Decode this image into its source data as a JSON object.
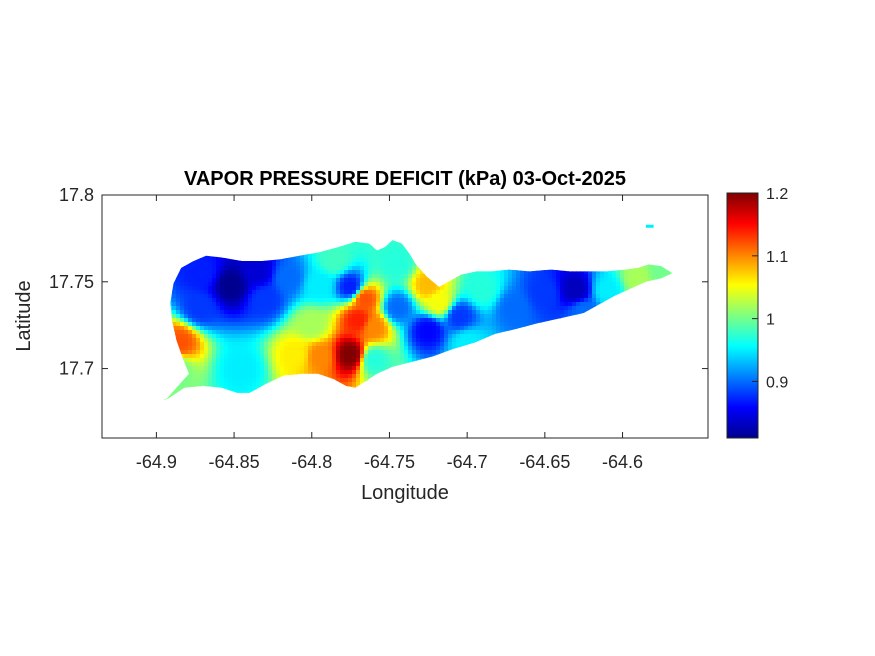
{
  "chart_data": {
    "type": "heatmap",
    "title": "VAPOR PRESSURE DEFICIT (kPa) 03-Oct-2025",
    "xlabel": "Longitude",
    "ylabel": "Latitude",
    "xlim": [
      -64.935,
      -64.545
    ],
    "ylim": [
      17.66,
      17.8
    ],
    "xticks": [
      -64.9,
      -64.85,
      -64.8,
      -64.75,
      -64.7,
      -64.65,
      -64.6
    ],
    "xtick_labels": [
      "-64.9",
      "-64.85",
      "-64.8",
      "-64.75",
      "-64.7",
      "-64.65",
      "-64.6"
    ],
    "yticks": [
      17.7,
      17.75,
      17.8
    ],
    "ytick_labels": [
      "17.7",
      "17.75",
      "17.8"
    ],
    "colorbar": {
      "min": 0.81,
      "max": 1.2,
      "colormap": "jet",
      "ticks": [
        0.9,
        1,
        1.1,
        1.2
      ],
      "tick_labels": [
        "0.9",
        "1",
        "1.1",
        "1.2"
      ]
    },
    "colormap_stops": [
      "#00008f",
      "#0000ff",
      "#0080ff",
      "#00ffff",
      "#80ff80",
      "#ffff00",
      "#ff8000",
      "#ff0000",
      "#800000"
    ],
    "grid": false,
    "island_outline": [
      [
        -64.9,
        17.68
      ],
      [
        -64.893,
        17.683
      ],
      [
        -64.886,
        17.69
      ],
      [
        -64.879,
        17.697
      ],
      [
        -64.883,
        17.706
      ],
      [
        -64.887,
        17.716
      ],
      [
        -64.89,
        17.728
      ],
      [
        -64.891,
        17.738
      ],
      [
        -64.889,
        17.749
      ],
      [
        -64.884,
        17.758
      ],
      [
        -64.876,
        17.762
      ],
      [
        -64.868,
        17.765
      ],
      [
        -64.858,
        17.764
      ],
      [
        -64.845,
        17.762
      ],
      [
        -64.832,
        17.762
      ],
      [
        -64.82,
        17.763
      ],
      [
        -64.808,
        17.765
      ],
      [
        -64.795,
        17.767
      ],
      [
        -64.783,
        17.77
      ],
      [
        -64.772,
        17.773
      ],
      [
        -64.763,
        17.772
      ],
      [
        -64.758,
        17.768
      ],
      [
        -64.753,
        17.77
      ],
      [
        -64.748,
        17.774
      ],
      [
        -64.742,
        17.772
      ],
      [
        -64.737,
        17.766
      ],
      [
        -64.733,
        17.76
      ],
      [
        -64.726,
        17.753
      ],
      [
        -64.718,
        17.747
      ],
      [
        -64.712,
        17.75
      ],
      [
        -64.704,
        17.754
      ],
      [
        -64.694,
        17.756
      ],
      [
        -64.684,
        17.756
      ],
      [
        -64.673,
        17.757
      ],
      [
        -64.66,
        17.756
      ],
      [
        -64.646,
        17.757
      ],
      [
        -64.634,
        17.756
      ],
      [
        -64.622,
        17.756
      ],
      [
        -64.61,
        17.756
      ],
      [
        -64.598,
        17.757
      ],
      [
        -64.59,
        17.758
      ],
      [
        -64.583,
        17.76
      ],
      [
        -64.575,
        17.759
      ],
      [
        -64.568,
        17.755
      ],
      [
        -64.575,
        17.752
      ],
      [
        -64.585,
        17.75
      ],
      [
        -64.595,
        17.746
      ],
      [
        -64.605,
        17.742
      ],
      [
        -64.615,
        17.737
      ],
      [
        -64.625,
        17.732
      ],
      [
        -64.64,
        17.729
      ],
      [
        -64.655,
        17.726
      ],
      [
        -64.668,
        17.723
      ],
      [
        -64.682,
        17.72
      ],
      [
        -64.695,
        17.715
      ],
      [
        -64.71,
        17.711
      ],
      [
        -64.722,
        17.707
      ],
      [
        -64.735,
        17.704
      ],
      [
        -64.748,
        17.701
      ],
      [
        -64.758,
        17.697
      ],
      [
        -64.765,
        17.693
      ],
      [
        -64.772,
        17.689
      ],
      [
        -64.778,
        17.69
      ],
      [
        -64.786,
        17.694
      ],
      [
        -64.796,
        17.697
      ],
      [
        -64.806,
        17.697
      ],
      [
        -64.818,
        17.696
      ],
      [
        -64.83,
        17.691
      ],
      [
        -64.84,
        17.686
      ],
      [
        -64.848,
        17.686
      ],
      [
        -64.858,
        17.689
      ],
      [
        -64.87,
        17.69
      ],
      [
        -64.882,
        17.689
      ],
      [
        -64.892,
        17.683
      ]
    ],
    "cutout": [
      [
        -64.772,
        17.702
      ],
      [
        -64.766,
        17.705
      ],
      [
        -64.762,
        17.7
      ],
      [
        -64.764,
        17.693
      ],
      [
        -64.77,
        17.693
      ]
    ],
    "islet": [
      [
        -64.585,
        17.782
      ],
      [
        -64.58,
        17.782
      ]
    ],
    "field_points": [
      {
        "lon": -64.852,
        "lat": 17.748,
        "value": 0.81
      },
      {
        "lon": -64.835,
        "lat": 17.756,
        "value": 0.84
      },
      {
        "lon": -64.87,
        "lat": 17.755,
        "value": 0.87
      },
      {
        "lon": -64.872,
        "lat": 17.735,
        "value": 0.88
      },
      {
        "lon": -64.83,
        "lat": 17.74,
        "value": 0.88
      },
      {
        "lon": -64.815,
        "lat": 17.752,
        "value": 0.9
      },
      {
        "lon": -64.795,
        "lat": 17.748,
        "value": 0.95
      },
      {
        "lon": -64.785,
        "lat": 17.762,
        "value": 0.98
      },
      {
        "lon": -64.775,
        "lat": 17.747,
        "value": 0.87
      },
      {
        "lon": -64.766,
        "lat": 17.74,
        "value": 1.12
      },
      {
        "lon": -64.77,
        "lat": 17.728,
        "value": 1.14
      },
      {
        "lon": -64.76,
        "lat": 17.724,
        "value": 1.1
      },
      {
        "lon": -64.775,
        "lat": 17.708,
        "value": 1.2
      },
      {
        "lon": -64.795,
        "lat": 17.707,
        "value": 1.1
      },
      {
        "lon": -64.81,
        "lat": 17.708,
        "value": 1.06
      },
      {
        "lon": -64.8,
        "lat": 17.725,
        "value": 1.02
      },
      {
        "lon": -64.885,
        "lat": 17.715,
        "value": 1.12
      },
      {
        "lon": -64.888,
        "lat": 17.7,
        "value": 1.0
      },
      {
        "lon": -64.845,
        "lat": 17.7,
        "value": 0.95
      },
      {
        "lon": -64.745,
        "lat": 17.735,
        "value": 0.9
      },
      {
        "lon": -64.745,
        "lat": 17.76,
        "value": 0.97
      },
      {
        "lon": -64.725,
        "lat": 17.748,
        "value": 1.08
      },
      {
        "lon": -64.718,
        "lat": 17.738,
        "value": 1.05
      },
      {
        "lon": -64.725,
        "lat": 17.722,
        "value": 0.86
      },
      {
        "lon": -64.705,
        "lat": 17.73,
        "value": 0.88
      },
      {
        "lon": -64.7,
        "lat": 17.715,
        "value": 0.95
      },
      {
        "lon": -64.69,
        "lat": 17.745,
        "value": 0.97
      },
      {
        "lon": -64.67,
        "lat": 17.735,
        "value": 0.9
      },
      {
        "lon": -64.65,
        "lat": 17.743,
        "value": 0.88
      },
      {
        "lon": -64.63,
        "lat": 17.745,
        "value": 0.83
      },
      {
        "lon": -64.625,
        "lat": 17.733,
        "value": 0.9
      },
      {
        "lon": -64.61,
        "lat": 17.745,
        "value": 0.95
      },
      {
        "lon": -64.59,
        "lat": 17.752,
        "value": 1.02
      },
      {
        "lon": -64.575,
        "lat": 17.756,
        "value": 1.0
      },
      {
        "lon": -64.76,
        "lat": 17.705,
        "value": 0.97
      }
    ]
  }
}
